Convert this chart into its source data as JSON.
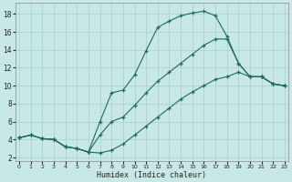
{
  "xlabel": "Humidex (Indice chaleur)",
  "bg_color": "#c8e8e8",
  "line_color": "#1e6b5e",
  "grid_color": "#a8cccc",
  "curve_upper_x": [
    0,
    1,
    2,
    3,
    4,
    5,
    6,
    7,
    8,
    9,
    10,
    11,
    12,
    13,
    14,
    15,
    16,
    17,
    18,
    19,
    20,
    21,
    22,
    23
  ],
  "curve_upper_y": [
    4.2,
    4.5,
    4.1,
    4.0,
    3.2,
    3.0,
    2.6,
    6.0,
    9.2,
    9.5,
    11.2,
    13.9,
    16.5,
    17.2,
    17.8,
    18.1,
    18.3,
    17.8,
    15.5,
    12.5,
    11.0,
    11.0,
    10.2,
    10.0
  ],
  "curve_middle_x": [
    0,
    1,
    2,
    3,
    4,
    5,
    6,
    7,
    8,
    9,
    10,
    11,
    12,
    13,
    14,
    15,
    16,
    17,
    18,
    19,
    20,
    21,
    22,
    23
  ],
  "curve_middle_y": [
    4.2,
    4.5,
    4.1,
    4.0,
    3.2,
    3.0,
    2.6,
    4.5,
    6.0,
    6.5,
    7.8,
    9.2,
    10.5,
    11.5,
    12.5,
    13.5,
    14.5,
    15.2,
    15.2,
    12.5,
    11.0,
    11.0,
    10.2,
    10.0
  ],
  "curve_lower_x": [
    0,
    1,
    2,
    3,
    4,
    5,
    6,
    7,
    8,
    9,
    10,
    11,
    12,
    13,
    14,
    15,
    16,
    17,
    18,
    19,
    20,
    21,
    22,
    23
  ],
  "curve_lower_y": [
    4.2,
    4.5,
    4.1,
    4.0,
    3.2,
    3.0,
    2.6,
    2.5,
    2.8,
    3.5,
    4.5,
    5.5,
    6.5,
    7.5,
    8.5,
    9.3,
    10.0,
    10.7,
    11.0,
    11.5,
    11.0,
    11.0,
    10.2,
    10.0
  ],
  "xlim": [
    -0.3,
    23.3
  ],
  "ylim": [
    1.6,
    19.2
  ],
  "yticks": [
    2,
    4,
    6,
    8,
    10,
    12,
    14,
    16,
    18
  ],
  "xticks": [
    0,
    1,
    2,
    3,
    4,
    5,
    6,
    7,
    8,
    9,
    10,
    11,
    12,
    13,
    14,
    15,
    16,
    17,
    18,
    19,
    20,
    21,
    22,
    23
  ]
}
